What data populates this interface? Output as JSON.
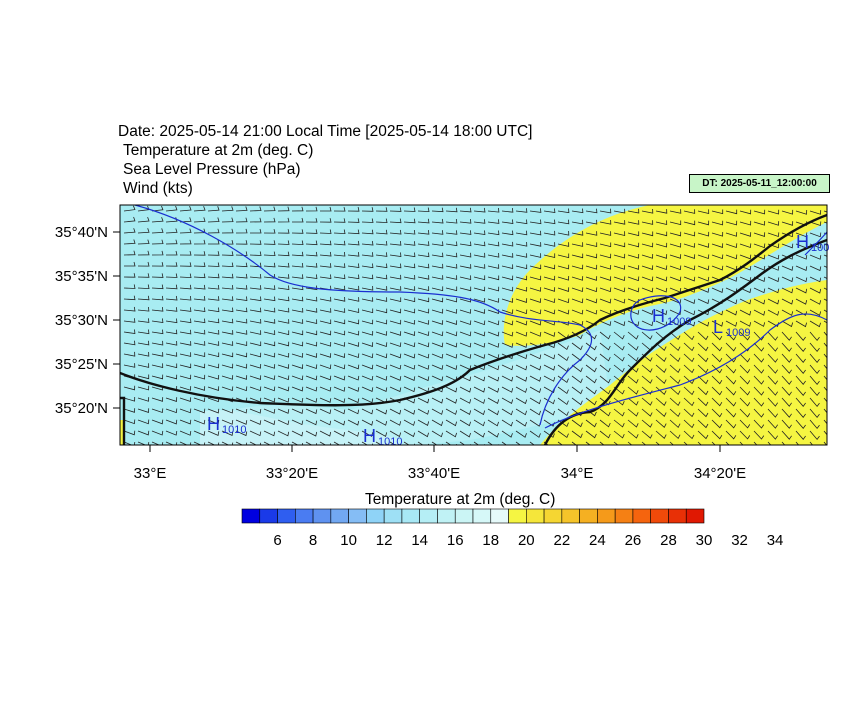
{
  "header": {
    "line1": "Date: 2025-05-14  21:00 Local Time [2025-05-14  18:00 UTC]",
    "line2": "Temperature at 2m   (deg. C)",
    "line3": "Sea Level Pressure   (hPa)",
    "line4": "Wind   (kts)"
  },
  "dt_label": "DT: 2025-05-11_12:00:00",
  "axes": {
    "lat_labels": [
      "35°40'N",
      "35°35'N",
      "35°30'N",
      "35°25'N",
      "35°20'N"
    ],
    "lon_labels": [
      "33°E",
      "33°20'E",
      "33°40'E",
      "34°E",
      "34°20'E"
    ]
  },
  "pressure_labels": [
    {
      "letter": "H",
      "value": "1010"
    },
    {
      "letter": "H",
      "value": "1010"
    },
    {
      "letter": "H",
      "value": "1009"
    },
    {
      "letter": "L",
      "value": "1009"
    },
    {
      "letter": "H",
      "value": "100"
    }
  ],
  "colorbar": {
    "title": "Temperature at 2m  (deg. C)",
    "tick_labels": [
      "6",
      "8",
      "10",
      "12",
      "14",
      "16",
      "18",
      "20",
      "22",
      "24",
      "26",
      "28",
      "30",
      "32",
      "34"
    ],
    "colors": [
      "#0000e0",
      "#1a3ae8",
      "#2f5ef0",
      "#4a7cf2",
      "#5f92f0",
      "#72a8f2",
      "#85bdf5",
      "#8fd3f7",
      "#9ee0f5",
      "#a8e8f5",
      "#b5eef5",
      "#c0f2f5",
      "#cbf5f5",
      "#d6f8f8",
      "#e6fafa",
      "#f5f542",
      "#f5e63a",
      "#f5d632",
      "#f5c42a",
      "#f5b022",
      "#f59a1a",
      "#f58014",
      "#f5640e",
      "#f04a0a",
      "#e83006",
      "#e01802"
    ]
  }
}
